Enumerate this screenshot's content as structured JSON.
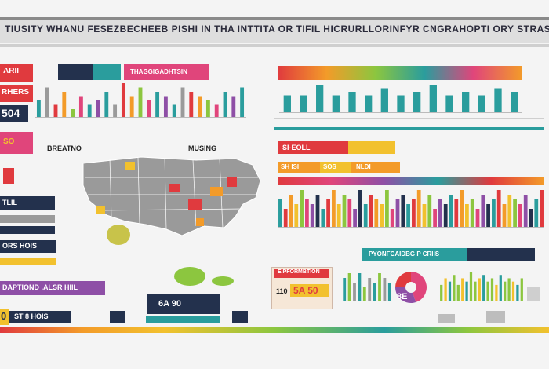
{
  "header": {
    "title": "TIUSITY WHANU FESEZBECHEEB PISHI IN THA INTTITA OR TIFIL HICRURLLORINFYR CNGRAHOPTI ORY STRASHIN :"
  },
  "panels": {
    "left_banner_1": "ARII",
    "left_banner_2": "RHERS",
    "left_value_1": "504",
    "left_banner_3": "SO",
    "left_label_breatno": "BREATNO",
    "left_banner_4": "TLIL",
    "left_banner_5": "ORS HOIS",
    "left_banner_6": "DAPTIOND .ALSR HIIL",
    "left_banner_7": "ST 8 HOIS",
    "left_value_2": "0",
    "chart_header_tab": "THAGGIGADHTSIN",
    "map_label_musing": "MUSING",
    "mid_value_box": "6A 90",
    "right_banner_1": "SI-EOLL",
    "right_banner_2": "SH ISI",
    "right_banner_3": "SOS",
    "right_banner_4": "NLDI",
    "right_label_pyong": "PYONFCAIDBG P CRIIS",
    "right_box_title": "EIPFORMBTION",
    "right_box_value": "5A 50",
    "right_box_prefix": "110",
    "donut_label": "8E"
  },
  "colors": {
    "teal": "#2a9d9d",
    "red": "#e03a3e",
    "orange": "#f39b29",
    "yellow": "#f2c12e",
    "green": "#8cc63f",
    "navy": "#23314d",
    "pink": "#e0457b",
    "purple": "#8e4fa6",
    "gray": "#9a9a9a"
  },
  "chart_data": [
    {
      "type": "bar",
      "values": [
        4,
        7,
        3,
        6,
        2,
        5,
        3,
        4,
        6,
        3,
        8,
        5,
        7,
        4,
        6,
        5,
        3,
        7,
        6,
        5,
        4,
        3,
        6,
        5,
        7
      ]
    },
    {
      "type": "bar",
      "values": [
        5,
        5,
        8,
        5,
        6,
        5,
        7,
        5,
        6,
        8,
        5,
        6,
        5,
        7,
        6
      ]
    },
    {
      "type": "bar",
      "values": [
        6,
        4,
        7,
        5,
        8,
        6,
        5,
        7,
        4,
        6,
        8,
        5,
        7,
        6,
        4,
        8,
        5,
        7,
        6,
        5,
        8,
        4,
        6,
        7,
        5,
        6,
        8,
        5,
        7,
        4,
        6,
        5,
        7,
        6,
        8,
        5,
        6,
        4,
        7,
        5,
        6,
        8,
        5,
        7,
        6,
        5,
        7,
        4,
        6,
        8
      ]
    },
    {
      "type": "bar",
      "values": [
        5,
        6,
        4,
        6,
        3,
        5,
        4,
        6,
        5,
        4
      ]
    },
    {
      "type": "pie",
      "values": [
        45,
        30,
        25
      ]
    },
    {
      "type": "bar",
      "values": [
        5,
        7,
        6,
        8,
        5,
        7,
        6,
        9,
        6,
        7,
        8,
        6,
        7,
        5,
        8,
        6,
        7,
        6,
        5,
        7
      ]
    }
  ]
}
